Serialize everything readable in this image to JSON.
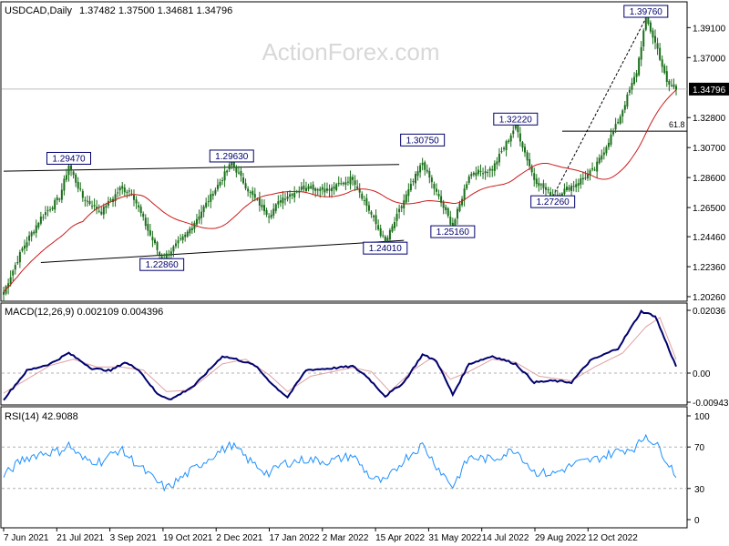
{
  "header": {
    "symbol_label": "USDCAD,Daily",
    "ohlc": "1.37482 1.37500 1.34681 1.34796"
  },
  "watermark": "ActionForex.com",
  "colors": {
    "candle": "#1a6e1a",
    "ma": "#cc1a1a",
    "macd": "#00006e",
    "macd_signal": "#e0a0a0",
    "rsi": "#1e90ff",
    "annotation": "#00006e",
    "trendline": "#000000"
  },
  "chart_data": [
    {
      "type": "candlestick",
      "title": "USDCAD,Daily",
      "ylim": [
        1.2026,
        1.3976
      ],
      "y_ticks": [
        "1.39100",
        "1.37000",
        "1.34796",
        "1.32800",
        "1.30700",
        "1.28600",
        "1.26500",
        "1.24460",
        "1.22360",
        "1.20260"
      ],
      "current_price": "1.34796",
      "x_ticks": [
        "7 Jun 2021",
        "21 Jul 2021",
        "3 Sep 2021",
        "19 Oct 2021",
        "2 Dec 2021",
        "17 Jan 2022",
        "2 Mar 2022",
        "15 Apr 2022",
        "31 May 2022",
        "14 Jul 2022",
        "29 Aug 2022",
        "12 Oct 2022"
      ],
      "close_anchors": [
        [
          0,
          1.206
        ],
        [
          8,
          1.236
        ],
        [
          16,
          1.258
        ],
        [
          24,
          1.272
        ],
        [
          28,
          1.2947
        ],
        [
          34,
          1.272
        ],
        [
          42,
          1.262
        ],
        [
          50,
          1.278
        ],
        [
          55,
          1.276
        ],
        [
          62,
          1.249
        ],
        [
          68,
          1.2286
        ],
        [
          78,
          1.245
        ],
        [
          88,
          1.27
        ],
        [
          98,
          1.2963
        ],
        [
          106,
          1.275
        ],
        [
          114,
          1.26
        ],
        [
          120,
          1.272
        ],
        [
          130,
          1.28
        ],
        [
          140,
          1.277
        ],
        [
          150,
          1.286
        ],
        [
          158,
          1.26
        ],
        [
          164,
          1.2401
        ],
        [
          172,
          1.27
        ],
        [
          180,
          1.2966
        ],
        [
          186,
          1.275
        ],
        [
          193,
          1.2516
        ],
        [
          200,
          1.288
        ],
        [
          210,
          1.292
        ],
        [
          220,
          1.3222
        ],
        [
          228,
          1.285
        ],
        [
          236,
          1.2726
        ],
        [
          246,
          1.282
        ],
        [
          254,
          1.292
        ],
        [
          264,
          1.325
        ],
        [
          272,
          1.36
        ],
        [
          276,
          1.3976
        ],
        [
          281,
          1.376
        ],
        [
          285,
          1.352
        ],
        [
          289,
          1.34796
        ]
      ],
      "annotations": [
        {
          "label": "1.29470",
          "date_index": 28,
          "price": 1.2947
        },
        {
          "label": "1.22860",
          "date_index": 68,
          "price": 1.2286
        },
        {
          "label": "1.29630",
          "date_index": 98,
          "price": 1.2963
        },
        {
          "label": "1.24010",
          "date_index": 164,
          "price": 1.2401
        },
        {
          "label": "1.30750",
          "date_index": 180,
          "price": 1.3075
        },
        {
          "label": "1.25160",
          "date_index": 193,
          "price": 1.2516
        },
        {
          "label": "1.32220",
          "date_index": 220,
          "price": 1.3222
        },
        {
          "label": "1.27260",
          "date_index": 236,
          "price": 1.2726
        },
        {
          "label": "1.39760",
          "date_index": 276,
          "price": 1.3976
        }
      ],
      "fib_label": "61.8",
      "fib_level": 1.3185,
      "trendlines": [
        {
          "from": [
            0,
            1.2905
          ],
          "to": [
            170,
            1.2952
          ]
        },
        {
          "from": [
            16,
            1.2265
          ],
          "to": [
            172,
            1.242
          ]
        }
      ]
    },
    {
      "type": "line",
      "title": "MACD(12,26,9) 0.002109 0.004396",
      "ylim": [
        -0.009438,
        0.02036
      ],
      "y_ticks": [
        "0.02036",
        "0.00",
        "-0.009438"
      ],
      "series": [
        {
          "name": "MACD",
          "anchors": [
            [
              0,
              -0.0085
            ],
            [
              10,
              0.0008
            ],
            [
              20,
              0.003
            ],
            [
              28,
              0.0065
            ],
            [
              38,
              0.0015
            ],
            [
              46,
              0.0008
            ],
            [
              52,
              0.0035
            ],
            [
              58,
              0.0012
            ],
            [
              66,
              -0.0068
            ],
            [
              72,
              -0.0085
            ],
            [
              82,
              -0.004
            ],
            [
              94,
              0.0055
            ],
            [
              100,
              0.0045
            ],
            [
              108,
              0.0025
            ],
            [
              116,
              -0.004
            ],
            [
              122,
              -0.0078
            ],
            [
              130,
              0.001
            ],
            [
              140,
              0.0015
            ],
            [
              150,
              0.0022
            ],
            [
              156,
              -0.001
            ],
            [
              164,
              -0.0075
            ],
            [
              172,
              -0.003
            ],
            [
              180,
              0.006
            ],
            [
              186,
              0.004
            ],
            [
              193,
              -0.007
            ],
            [
              200,
              0.003
            ],
            [
              210,
              0.0055
            ],
            [
              220,
              0.003
            ],
            [
              228,
              -0.003
            ],
            [
              236,
              -0.0025
            ],
            [
              244,
              -0.003
            ],
            [
              252,
              0.004
            ],
            [
              264,
              0.008
            ],
            [
              274,
              0.02
            ],
            [
              280,
              0.0185
            ],
            [
              289,
              0.0021
            ]
          ]
        },
        {
          "name": "Signal",
          "anchors": [
            [
              0,
              -0.0065
            ],
            [
              10,
              -0.002
            ],
            [
              20,
              0.0025
            ],
            [
              30,
              0.0045
            ],
            [
              40,
              0.002
            ],
            [
              50,
              0.002
            ],
            [
              60,
              0.001
            ],
            [
              70,
              -0.006
            ],
            [
              80,
              -0.0055
            ],
            [
              94,
              0.003
            ],
            [
              104,
              0.0045
            ],
            [
              114,
              -0.0005
            ],
            [
              122,
              -0.006
            ],
            [
              132,
              -0.001
            ],
            [
              150,
              0.0018
            ],
            [
              158,
              0.0005
            ],
            [
              166,
              -0.006
            ],
            [
              176,
              0.001
            ],
            [
              184,
              0.005
            ],
            [
              192,
              -0.002
            ],
            [
              200,
              0.0005
            ],
            [
              210,
              0.0045
            ],
            [
              220,
              0.0035
            ],
            [
              230,
              -0.001
            ],
            [
              244,
              -0.0025
            ],
            [
              254,
              0.002
            ],
            [
              266,
              0.0065
            ],
            [
              276,
              0.015
            ],
            [
              282,
              0.018
            ],
            [
              289,
              0.0044
            ]
          ]
        }
      ]
    },
    {
      "type": "line",
      "title": "RSI(14) 42.9088",
      "ylim": [
        0,
        100
      ],
      "y_ticks": [
        "100",
        "70",
        "30",
        "0"
      ],
      "series": [
        {
          "name": "RSI",
          "anchors": [
            [
              0,
              42
            ],
            [
              8,
              58
            ],
            [
              16,
              64
            ],
            [
              24,
              66
            ],
            [
              28,
              72
            ],
            [
              34,
              58
            ],
            [
              42,
              56
            ],
            [
              50,
              68
            ],
            [
              58,
              52
            ],
            [
              66,
              36
            ],
            [
              70,
              30
            ],
            [
              80,
              46
            ],
            [
              90,
              62
            ],
            [
              98,
              72
            ],
            [
              106,
              56
            ],
            [
              114,
              44
            ],
            [
              120,
              54
            ],
            [
              130,
              58
            ],
            [
              140,
              56
            ],
            [
              150,
              62
            ],
            [
              158,
              40
            ],
            [
              164,
              36
            ],
            [
              172,
              58
            ],
            [
              180,
              72
            ],
            [
              186,
              52
            ],
            [
              193,
              32
            ],
            [
              200,
              60
            ],
            [
              210,
              58
            ],
            [
              220,
              68
            ],
            [
              228,
              46
            ],
            [
              236,
              44
            ],
            [
              246,
              54
            ],
            [
              254,
              58
            ],
            [
              264,
              66
            ],
            [
              272,
              70
            ],
            [
              276,
              82
            ],
            [
              282,
              68
            ],
            [
              289,
              43
            ]
          ]
        }
      ]
    }
  ]
}
